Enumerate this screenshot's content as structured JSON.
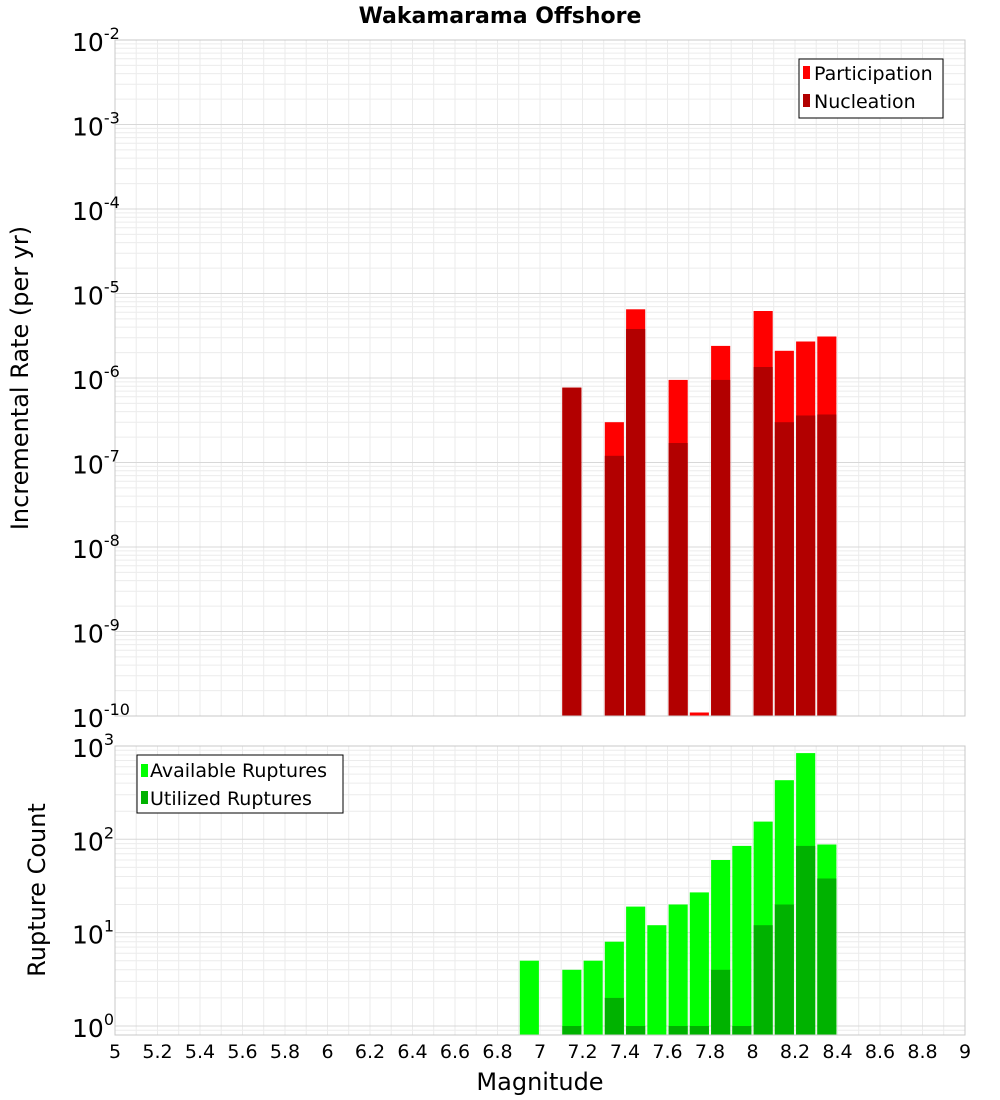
{
  "title": "Wakamarama Offshore",
  "xlabel": "Magnitude",
  "chart_data": [
    {
      "type": "bar",
      "scale": "log",
      "ylabel": "Incremental Rate (per yr)",
      "xlim": [
        5,
        9
      ],
      "ylim": [
        1e-10,
        0.01
      ],
      "x_ticks": [
        "5",
        "5.2",
        "5.4",
        "5.6",
        "5.8",
        "6",
        "6.2",
        "6.4",
        "6.6",
        "6.8",
        "7",
        "7.2",
        "7.4",
        "7.6",
        "7.8",
        "8",
        "8.2",
        "8.4",
        "8.6",
        "8.8",
        "9"
      ],
      "y_ticks": [
        {
          "base": "10",
          "exp": "-10"
        },
        {
          "base": "10",
          "exp": "-9"
        },
        {
          "base": "10",
          "exp": "-8"
        },
        {
          "base": "10",
          "exp": "-7"
        },
        {
          "base": "10",
          "exp": "-6"
        },
        {
          "base": "10",
          "exp": "-5"
        },
        {
          "base": "10",
          "exp": "-4"
        },
        {
          "base": "10",
          "exp": "-3"
        },
        {
          "base": "10",
          "exp": "-2"
        }
      ],
      "legend_position": "top-right",
      "series": [
        {
          "name": "Participation",
          "color": "#ff0000",
          "x": [
            7.15,
            7.35,
            7.45,
            7.65,
            7.75,
            7.85,
            8.05,
            8.15,
            8.25,
            8.35
          ],
          "values": [
            7.7e-07,
            3e-07,
            6.5e-06,
            9.5e-07,
            1.1e-10,
            2.4e-06,
            6.2e-06,
            2.1e-06,
            2.7e-06,
            3.1e-06
          ]
        },
        {
          "name": "Nucleation",
          "color": "#b20000",
          "x": [
            7.15,
            7.35,
            7.45,
            7.65,
            7.85,
            8.05,
            8.15,
            8.25,
            8.35
          ],
          "values": [
            7.7e-07,
            1.2e-07,
            3.8e-06,
            1.7e-07,
            9.5e-07,
            1.35e-06,
            3e-07,
            3.6e-07,
            3.7e-07
          ]
        }
      ]
    },
    {
      "type": "bar",
      "scale": "log",
      "ylabel": "Rupture Count",
      "xlim": [
        5,
        9
      ],
      "ylim": [
        0.8,
        1000
      ],
      "y_ticks": [
        {
          "base": "10",
          "exp": "0"
        },
        {
          "base": "10",
          "exp": "1"
        },
        {
          "base": "10",
          "exp": "2"
        },
        {
          "base": "10",
          "exp": "3"
        }
      ],
      "legend_position": "top-left",
      "series": [
        {
          "name": "Available Ruptures",
          "color": "#00ff00",
          "x": [
            6.95,
            7.15,
            7.25,
            7.35,
            7.45,
            7.55,
            7.65,
            7.75,
            7.85,
            7.95,
            8.05,
            8.15,
            8.25,
            8.35
          ],
          "values": [
            5,
            4,
            5,
            8,
            19,
            12,
            20,
            27,
            60,
            85,
            155,
            430,
            840,
            88
          ]
        },
        {
          "name": "Utilized Ruptures",
          "color": "#00b200",
          "x": [
            7.15,
            7.35,
            7.45,
            7.65,
            7.75,
            7.85,
            7.95,
            8.05,
            8.15,
            8.25,
            8.35
          ],
          "values": [
            1,
            2,
            1,
            1,
            1,
            4,
            1,
            12,
            20,
            85,
            38
          ]
        }
      ]
    }
  ]
}
